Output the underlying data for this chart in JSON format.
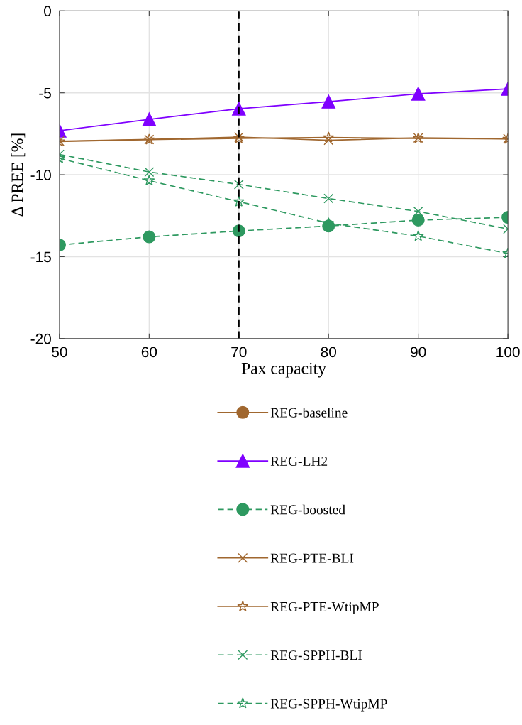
{
  "chart_data": {
    "type": "line",
    "xlabel": "Pax capacity",
    "ylabel": "Δ PREE [%]",
    "x": [
      50,
      60,
      70,
      80,
      90,
      100
    ],
    "xlim": [
      50,
      100
    ],
    "xticks": [
      50,
      60,
      70,
      80,
      90,
      100
    ],
    "ylim": [
      -20,
      0
    ],
    "yticks": [
      -20,
      -15,
      -10,
      -5,
      0
    ],
    "grid": true,
    "legend": "bottom",
    "ref_lines": [
      {
        "axis": "x",
        "value": 70,
        "color": "#000000",
        "line_style": "dashed"
      }
    ],
    "series": [
      {
        "name": "REG-baseline",
        "color": "#a0672f",
        "marker": "circle",
        "line_style": "solid",
        "values": [
          null,
          null,
          null,
          null,
          null,
          null
        ]
      },
      {
        "name": "REG-LH2",
        "color": "#7f00ff",
        "marker": "triangle",
        "line_style": "solid",
        "values": [
          -7.31,
          -6.62,
          -5.97,
          -5.54,
          -5.06,
          -4.76
        ]
      },
      {
        "name": "REG-boosted",
        "color": "#2e9960",
        "marker": "circle",
        "line_style": "dashed",
        "values": [
          -14.29,
          -13.79,
          -13.43,
          -13.13,
          -12.77,
          -12.6
        ]
      },
      {
        "name": "REG-PTE-BLI",
        "color": "#a0672f",
        "marker": "cross",
        "line_style": "solid",
        "values": [
          -7.95,
          -7.85,
          -7.7,
          -7.9,
          -7.75,
          -7.8
        ]
      },
      {
        "name": "REG-PTE-WtipMP",
        "color": "#a0672f",
        "marker": "star",
        "line_style": "solid",
        "values": [
          -7.98,
          -7.86,
          -7.78,
          -7.73,
          -7.78,
          -7.82
        ]
      },
      {
        "name": "REG-SPPH-BLI",
        "color": "#2e9960",
        "marker": "cross",
        "line_style": "dashed",
        "values": [
          -8.76,
          -9.83,
          -10.59,
          -11.45,
          -12.24,
          -13.31
        ]
      },
      {
        "name": "REG-SPPH-WtipMP",
        "color": "#2e9960",
        "marker": "star",
        "line_style": "dashed",
        "values": [
          -9.0,
          -10.36,
          -11.64,
          -12.96,
          -13.75,
          -14.8
        ]
      }
    ]
  }
}
